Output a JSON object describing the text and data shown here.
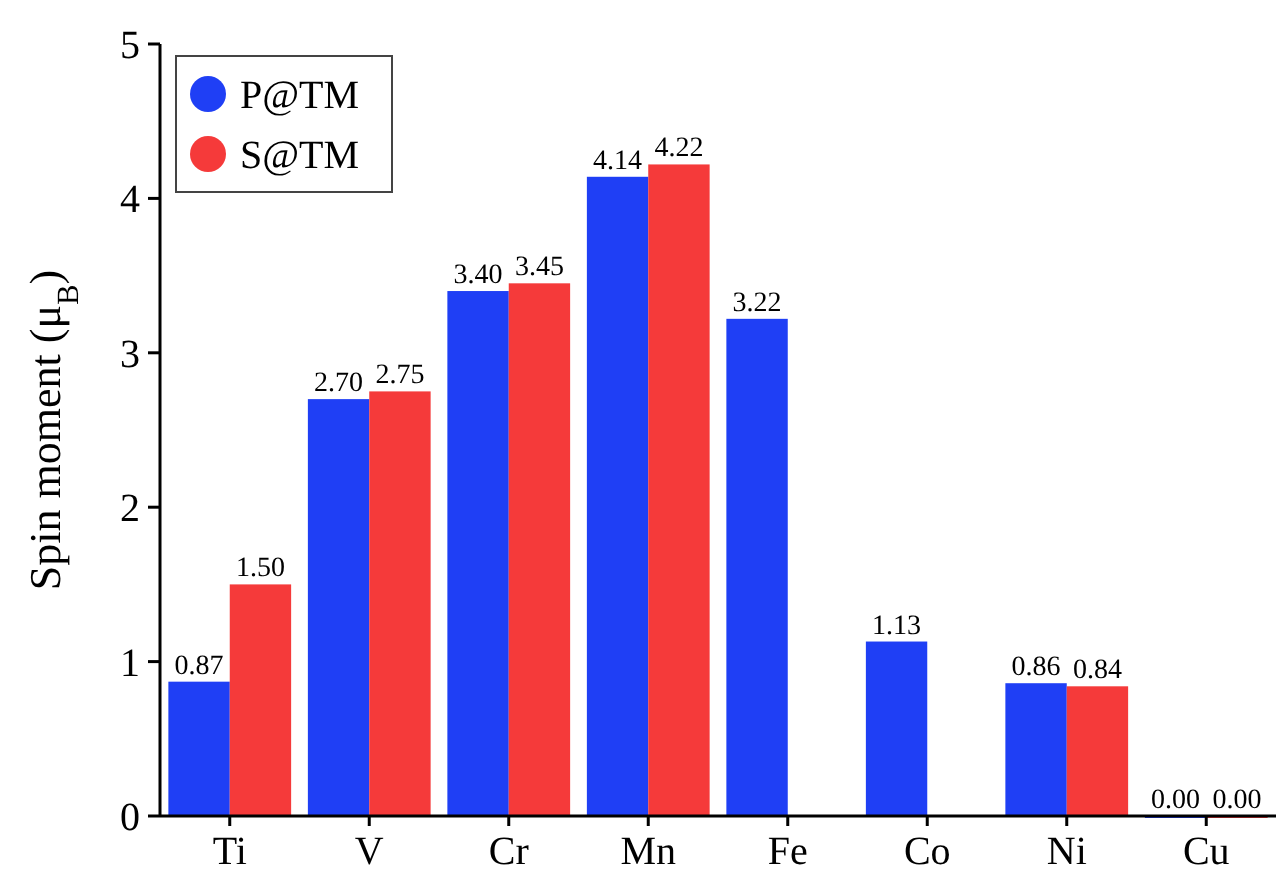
{
  "chart_data": {
    "type": "bar",
    "ylabel": "Spin moment (μ$_{B}$)",
    "categories": [
      "Ti",
      "V",
      "Cr",
      "Mn",
      "Fe",
      "Co",
      "Ni",
      "Cu"
    ],
    "series": [
      {
        "name": "P@TM",
        "color": "#1f3ff5",
        "values": [
          0.87,
          2.7,
          3.4,
          4.14,
          3.22,
          1.13,
          0.86,
          0.0
        ],
        "value_labels": [
          "0.87",
          "2.70",
          "3.40",
          "4.14",
          "3.22",
          "1.13",
          "0.86",
          "0.00"
        ]
      },
      {
        "name": "S@TM",
        "color": "#f53a3a",
        "values": [
          1.5,
          2.75,
          3.45,
          4.22,
          null,
          null,
          0.84,
          0.0
        ],
        "value_labels": [
          "1.50",
          "2.75",
          "3.45",
          "4.22",
          null,
          null,
          "0.84",
          "0.00"
        ]
      }
    ],
    "ylim": [
      0,
      5
    ],
    "yticks": [
      0,
      1,
      2,
      3,
      4,
      5
    ],
    "legend": "top left",
    "grid": false
  }
}
